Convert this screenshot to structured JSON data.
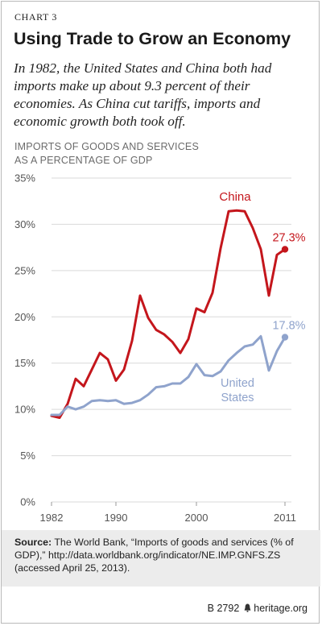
{
  "header": {
    "chart_label": "CHART 3",
    "title": "Using Trade to Grow an Economy",
    "subtitle": "In 1982, the United States and China both had imports make up about 9.3 percent of their economies. As China cut tariffs, imports and economic growth both took off.",
    "axis_title_line1": "IMPORTS OF GOODS AND SERVICES",
    "axis_title_line2": "AS A PERCENTAGE OF GDP"
  },
  "source": {
    "label": "Source:",
    "text": "The World Bank, “Imports of goods and services (% of GDP),” http://data.worldbank.org/indicator/NE.IMP.GNFS.ZS (accessed April 25, 2013)."
  },
  "footer": {
    "code": "B 2792",
    "site": "heritage.org"
  },
  "colors": {
    "china": "#c4161c",
    "us": "#8fa3cc",
    "grid": "#d9d9d9",
    "tick": "#555555"
  },
  "chart_data": {
    "type": "line",
    "xlabel": "",
    "ylabel": "IMPORTS OF GOODS AND SERVICES AS A PERCENTAGE OF GDP",
    "ylim": [
      0,
      35
    ],
    "xlim": [
      1982,
      2011
    ],
    "y_ticks": [
      "0%",
      "5%",
      "10%",
      "15%",
      "20%",
      "25%",
      "30%",
      "35%"
    ],
    "x_ticks": [
      "1982",
      "1990",
      "2000",
      "2011"
    ],
    "grid": true,
    "series": [
      {
        "name": "China",
        "end_label": "27.3%",
        "x": [
          1982,
          1983,
          1984,
          1985,
          1986,
          1987,
          1988,
          1989,
          1990,
          1991,
          1992,
          1993,
          1994,
          1995,
          1996,
          1997,
          1998,
          1999,
          2000,
          2001,
          2002,
          2003,
          2004,
          2005,
          2006,
          2007,
          2008,
          2009,
          2010,
          2011
        ],
        "values": [
          9.3,
          9.1,
          10.6,
          13.3,
          12.5,
          14.3,
          16.1,
          15.4,
          13.1,
          14.3,
          17.4,
          22.3,
          19.9,
          18.6,
          18.1,
          17.3,
          16.1,
          17.6,
          20.9,
          20.5,
          22.6,
          27.4,
          31.4,
          31.5,
          31.4,
          29.6,
          27.3,
          22.3,
          26.7,
          27.3
        ]
      },
      {
        "name": "United States",
        "name_line1": "United",
        "name_line2": "States",
        "end_label": "17.8%",
        "x": [
          1982,
          1983,
          1984,
          1985,
          1986,
          1987,
          1988,
          1989,
          1990,
          1991,
          1992,
          1993,
          1994,
          1995,
          1996,
          1997,
          1998,
          1999,
          2000,
          2001,
          2002,
          2003,
          2004,
          2005,
          2006,
          2007,
          2008,
          2009,
          2010,
          2011
        ],
        "values": [
          9.4,
          9.4,
          10.3,
          10.0,
          10.3,
          10.9,
          11.0,
          10.9,
          11.0,
          10.6,
          10.7,
          11.0,
          11.6,
          12.4,
          12.5,
          12.8,
          12.8,
          13.5,
          14.9,
          13.7,
          13.6,
          14.1,
          15.3,
          16.1,
          16.8,
          17.0,
          17.9,
          14.2,
          16.3,
          17.8
        ]
      }
    ]
  }
}
